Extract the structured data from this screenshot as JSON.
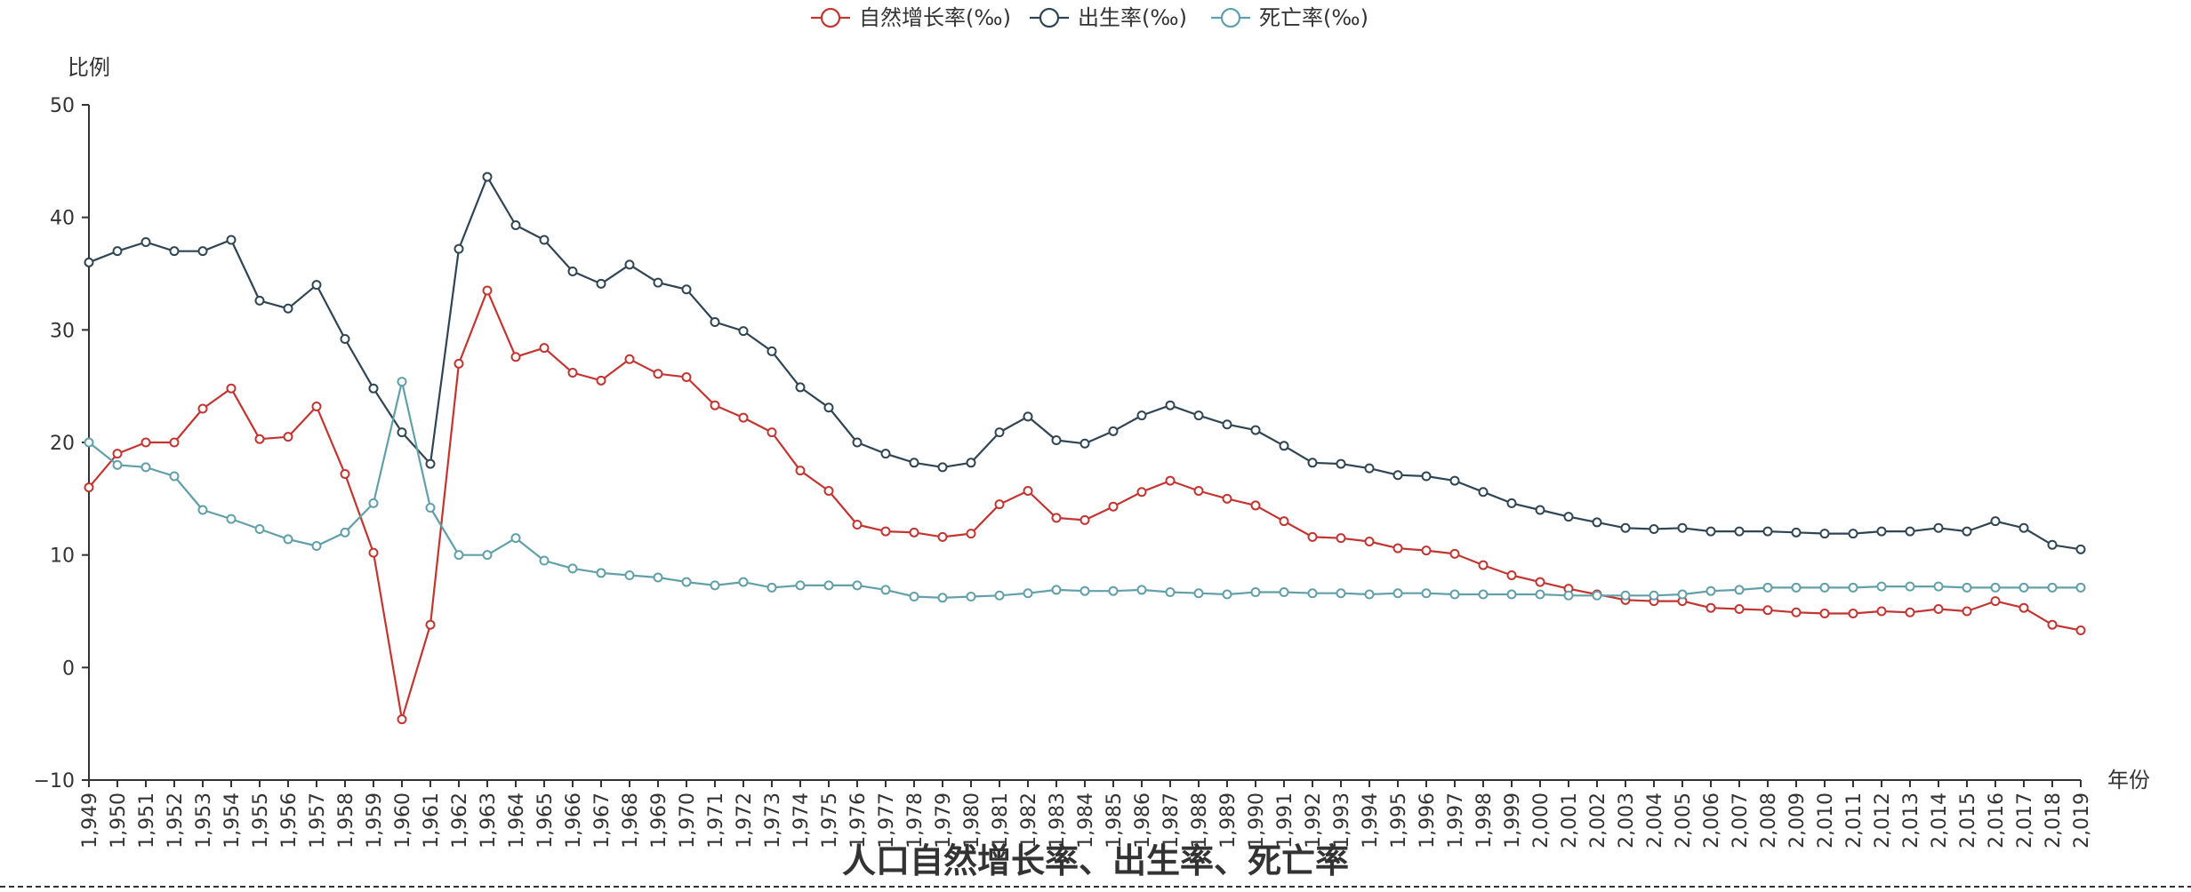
{
  "chart_data": {
    "type": "line",
    "title": "人口自然增长率、出生率、死亡率",
    "xlabel": "年份",
    "ylabel": "比例",
    "ylim": [
      -10,
      50
    ],
    "yticks": [
      -10,
      0,
      10,
      20,
      30,
      40,
      50
    ],
    "grid": false,
    "legend_position": "top-center",
    "x": [
      "1,949",
      "1,950",
      "1,951",
      "1,952",
      "1,953",
      "1,954",
      "1,955",
      "1,956",
      "1,957",
      "1,958",
      "1,959",
      "1,960",
      "1,961",
      "1,962",
      "1,963",
      "1,964",
      "1,965",
      "1,966",
      "1,967",
      "1,968",
      "1,969",
      "1,970",
      "1,971",
      "1,972",
      "1,973",
      "1,974",
      "1,975",
      "1,976",
      "1,977",
      "1,978",
      "1,979",
      "1,980",
      "1,981",
      "1,982",
      "1,983",
      "1,984",
      "1,985",
      "1,986",
      "1,987",
      "1,988",
      "1,989",
      "1,990",
      "1,991",
      "1,992",
      "1,993",
      "1,994",
      "1,995",
      "1,996",
      "1,997",
      "1,998",
      "1,999",
      "2,000",
      "2,001",
      "2,002",
      "2,003",
      "2,004",
      "2,005",
      "2,006",
      "2,007",
      "2,008",
      "2,009",
      "2,010",
      "2,011",
      "2,012",
      "2,013",
      "2,014",
      "2,015",
      "2,016",
      "2,017",
      "2,018",
      "2,019"
    ],
    "series": [
      {
        "name": "自然增长率(‰)",
        "color": "#c23531",
        "values": [
          16.0,
          19.0,
          20.0,
          20.0,
          23.0,
          24.8,
          20.3,
          20.5,
          23.2,
          17.2,
          10.2,
          -4.6,
          3.8,
          27.0,
          33.5,
          27.6,
          28.4,
          26.2,
          25.5,
          27.4,
          26.1,
          25.8,
          23.3,
          22.2,
          20.9,
          17.5,
          15.7,
          12.7,
          12.1,
          12.0,
          11.6,
          11.9,
          14.5,
          15.7,
          13.3,
          13.1,
          14.3,
          15.6,
          16.6,
          15.7,
          15.0,
          14.4,
          13.0,
          11.6,
          11.5,
          11.2,
          10.6,
          10.4,
          10.1,
          9.1,
          8.2,
          7.6,
          7.0,
          6.5,
          6.0,
          5.9,
          5.9,
          5.3,
          5.2,
          5.1,
          4.9,
          4.8,
          4.8,
          5.0,
          4.9,
          5.2,
          5.0,
          5.9,
          5.3,
          3.8,
          3.3
        ]
      },
      {
        "name": "出生率(‰)",
        "color": "#2f4554",
        "values": [
          36.0,
          37.0,
          37.8,
          37.0,
          37.0,
          38.0,
          32.6,
          31.9,
          34.0,
          29.2,
          24.8,
          20.9,
          18.1,
          37.2,
          43.6,
          39.3,
          38.0,
          35.2,
          34.1,
          35.8,
          34.2,
          33.6,
          30.7,
          29.9,
          28.1,
          24.9,
          23.1,
          20.0,
          19.0,
          18.2,
          17.8,
          18.2,
          20.9,
          22.3,
          20.2,
          19.9,
          21.0,
          22.4,
          23.3,
          22.4,
          21.6,
          21.1,
          19.7,
          18.2,
          18.1,
          17.7,
          17.1,
          17.0,
          16.6,
          15.6,
          14.6,
          14.0,
          13.4,
          12.9,
          12.4,
          12.3,
          12.4,
          12.1,
          12.1,
          12.1,
          12.0,
          11.9,
          11.9,
          12.1,
          12.1,
          12.4,
          12.1,
          13.0,
          12.4,
          10.9,
          10.5
        ]
      },
      {
        "name": "死亡率(‰)",
        "color": "#61a0a8",
        "values": [
          20.0,
          18.0,
          17.8,
          17.0,
          14.0,
          13.2,
          12.3,
          11.4,
          10.8,
          12.0,
          14.6,
          25.4,
          14.2,
          10.0,
          10.0,
          11.5,
          9.5,
          8.8,
          8.4,
          8.2,
          8.0,
          7.6,
          7.3,
          7.6,
          7.1,
          7.3,
          7.3,
          7.3,
          6.9,
          6.3,
          6.2,
          6.3,
          6.4,
          6.6,
          6.9,
          6.8,
          6.8,
          6.9,
          6.7,
          6.6,
          6.5,
          6.7,
          6.7,
          6.6,
          6.6,
          6.5,
          6.6,
          6.6,
          6.5,
          6.5,
          6.5,
          6.5,
          6.4,
          6.4,
          6.4,
          6.4,
          6.5,
          6.8,
          6.9,
          7.1,
          7.1,
          7.1,
          7.1,
          7.2,
          7.2,
          7.2,
          7.1,
          7.1,
          7.1,
          7.1,
          7.1
        ]
      }
    ]
  }
}
